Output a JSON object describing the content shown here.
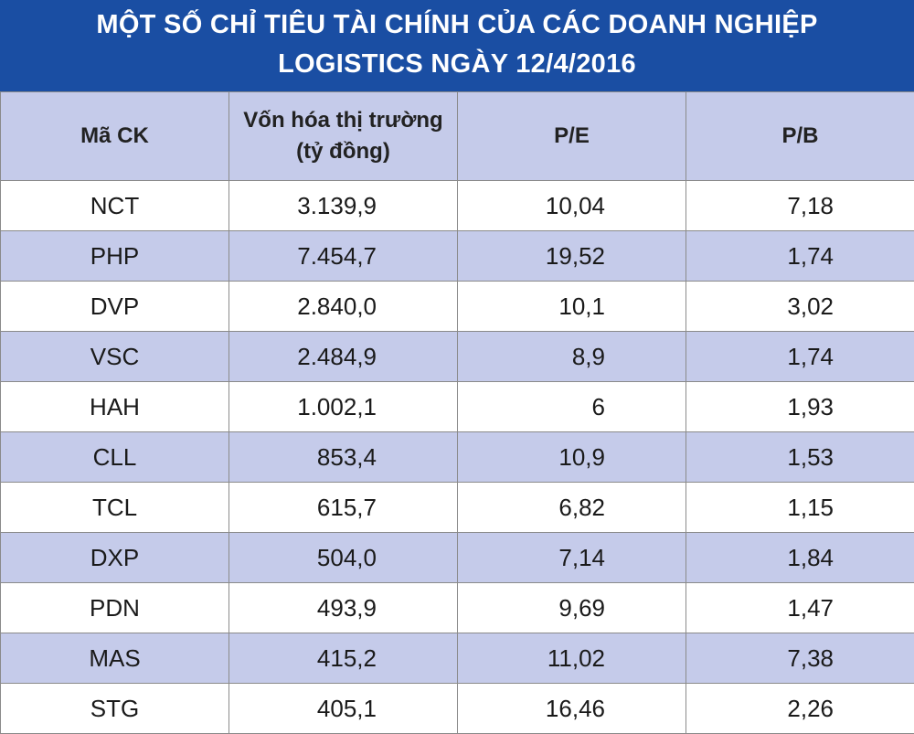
{
  "title": {
    "line1": "MỘT SỐ CHỈ TIÊU TÀI CHÍNH CỦA CÁC DOANH NGHIỆP",
    "line2": "LOGISTICS NGÀY 12/4/2016"
  },
  "table": {
    "headers": {
      "code": "Mã CK",
      "cap_line1": "Vốn hóa thị trường",
      "cap_line2": "(tỷ đồng)",
      "pe": "P/E",
      "pb": "P/B"
    },
    "rows": [
      {
        "code": "NCT",
        "cap": "3.139,9",
        "pe": "10,04",
        "pb": "7,18"
      },
      {
        "code": "PHP",
        "cap": "7.454,7",
        "pe": "19,52",
        "pb": "1,74"
      },
      {
        "code": "DVP",
        "cap": "2.840,0",
        "pe": "10,1",
        "pb": "3,02"
      },
      {
        "code": "VSC",
        "cap": "2.484,9",
        "pe": "8,9",
        "pb": "1,74"
      },
      {
        "code": "HAH",
        "cap": "1.002,1",
        "pe": "6",
        "pb": "1,93"
      },
      {
        "code": "CLL",
        "cap": "853,4",
        "pe": "10,9",
        "pb": "1,53"
      },
      {
        "code": "TCL",
        "cap": "615,7",
        "pe": "6,82",
        "pb": "1,15"
      },
      {
        "code": "DXP",
        "cap": "504,0",
        "pe": "7,14",
        "pb": "1,84"
      },
      {
        "code": "PDN",
        "cap": "493,9",
        "pe": "9,69",
        "pb": "1,47"
      },
      {
        "code": "MAS",
        "cap": "415,2",
        "pe": "11,02",
        "pb": "7,38"
      },
      {
        "code": "STG",
        "cap": "405,1",
        "pe": "16,46",
        "pb": "2,26"
      }
    ]
  },
  "colors": {
    "title_bg": "#1a4ea3",
    "row_alt_bg": "#c5cbea",
    "row_plain_bg": "#ffffff"
  }
}
